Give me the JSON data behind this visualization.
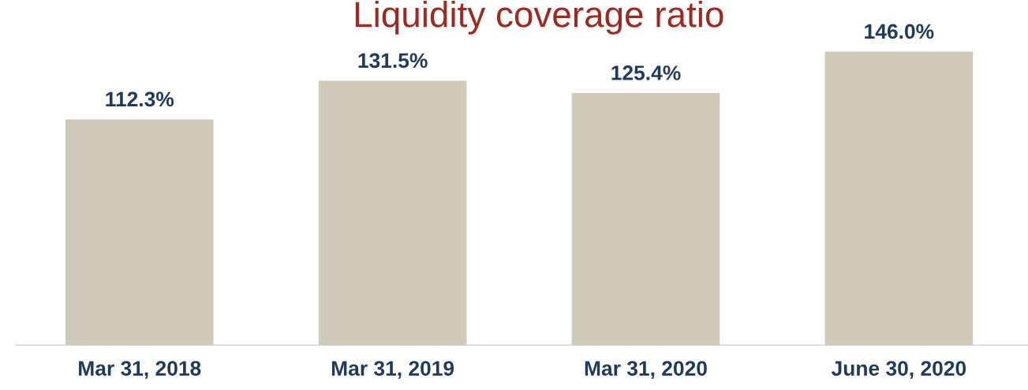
{
  "chart_data": {
    "type": "bar",
    "title": "Liquidity coverage ratio",
    "categories": [
      "Mar 31, 2018",
      "Mar 31, 2019",
      "Mar 31, 2020",
      "June 30, 2020"
    ],
    "values": [
      112.3,
      131.5,
      125.4,
      146.0
    ],
    "value_labels": [
      "112.3%",
      "131.5%",
      "125.4%",
      "146.0%"
    ],
    "color": "#cfcbb8",
    "grid": false,
    "legend": false
  }
}
